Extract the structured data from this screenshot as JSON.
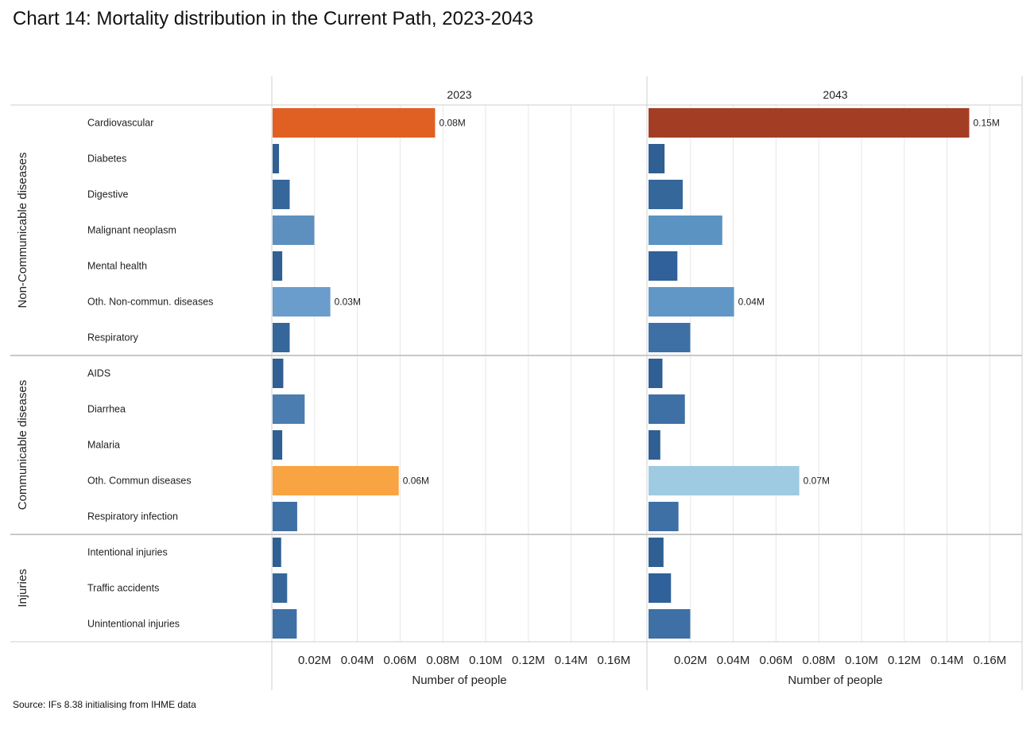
{
  "title": "Chart 14: Mortality distribution in the Current Path, 2023-2043",
  "source": "Source: IFs 8.38 initialising from IHME data",
  "chart_data": {
    "type": "bar",
    "orientation": "horizontal",
    "title": "Chart 14: Mortality distribution in the Current Path, 2023-2043",
    "xlabel": "Number of people",
    "xlim": [
      0,
      0.175
    ],
    "x_ticks": [
      0.02,
      0.04,
      0.06,
      0.08,
      0.1,
      0.12,
      0.14,
      0.16
    ],
    "x_tick_labels": [
      "0.02M",
      "0.04M",
      "0.06M",
      "0.08M",
      "0.10M",
      "0.12M",
      "0.14M",
      "0.16M"
    ],
    "groups": [
      {
        "name": "Non-Communicable diseases",
        "categories": [
          "Cardiovascular",
          "Diabetes",
          "Digestive",
          "Malignant neoplasm",
          "Mental health",
          "Oth. Non-commun. diseases",
          "Respiratory"
        ]
      },
      {
        "name": "Communicable diseases",
        "categories": [
          "AIDS",
          "Diarrhea",
          "Malaria",
          "Oth. Commun diseases",
          "Respiratory infection"
        ]
      },
      {
        "name": "Injuries",
        "categories": [
          "Intentional injuries",
          "Traffic accidents",
          "Unintentional injuries"
        ]
      }
    ],
    "panels": [
      {
        "year": "2023",
        "values": [
          0.076,
          0.003,
          0.008,
          0.0195,
          0.0045,
          0.027,
          0.008,
          0.005,
          0.015,
          0.0045,
          0.059,
          0.0115,
          0.004,
          0.0068,
          0.0113
        ],
        "colors": [
          "#e06024",
          "#2f5f93",
          "#35679b",
          "#5d8fbf",
          "#2f5f93",
          "#6a9dcb",
          "#35679b",
          "#2f5f93",
          "#4b7db0",
          "#2f5f93",
          "#f9a443",
          "#3e70a5",
          "#2f5f93",
          "#35679b",
          "#3e70a5"
        ],
        "data_labels": [
          "0.08M",
          "",
          "",
          "",
          "",
          "0.03M",
          "",
          "",
          "",
          "",
          "0.06M",
          "",
          "",
          "",
          ""
        ]
      },
      {
        "year": "2043",
        "values": [
          0.15,
          0.0075,
          0.016,
          0.0345,
          0.0135,
          0.04,
          0.0195,
          0.0065,
          0.017,
          0.0055,
          0.0705,
          0.014,
          0.007,
          0.0105,
          0.0195
        ],
        "colors": [
          "#a33e24",
          "#2f5f93",
          "#35679b",
          "#5b93c2",
          "#30619a",
          "#6097c6",
          "#3e70a5",
          "#2f5f93",
          "#3e70a5",
          "#2f5f93",
          "#9ecae2",
          "#3e70a5",
          "#2f5f93",
          "#30619a",
          "#3e70a5"
        ],
        "data_labels": [
          "0.15M",
          "",
          "",
          "",
          "",
          "0.04M",
          "",
          "",
          "",
          "",
          "0.07M",
          "",
          "",
          "",
          ""
        ]
      }
    ]
  }
}
